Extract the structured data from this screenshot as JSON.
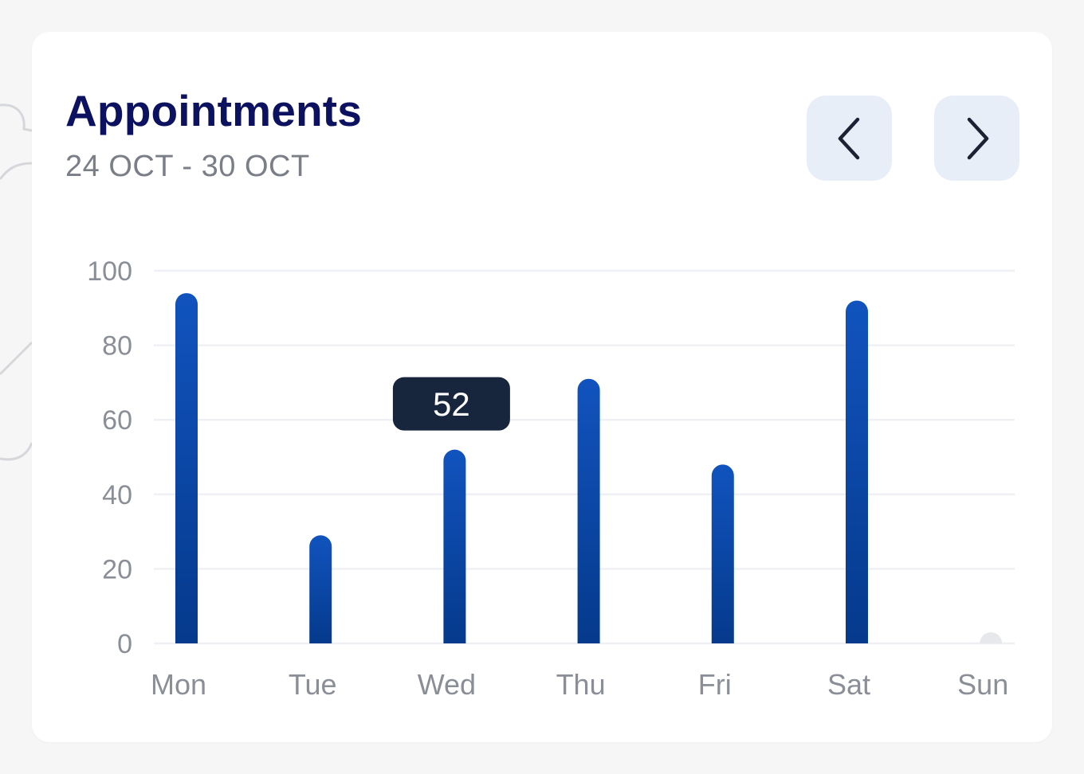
{
  "header": {
    "title": "Appointments",
    "date_range": "24 OCT - 30 OCT"
  },
  "nav": {
    "prev_icon": "chevron-left-icon",
    "next_icon": "chevron-right-icon"
  },
  "colors": {
    "title": "#0c1160",
    "bar_top": "#1153be",
    "bar_bottom": "#053a8c",
    "tooltip_bg": "#17253d",
    "empty_bar": "#e6e8ec"
  },
  "tooltip": {
    "category": "Wed",
    "value": "52"
  },
  "chart_data": {
    "type": "bar",
    "categories": [
      "Mon",
      "Tue",
      "Wed",
      "Thu",
      "Fri",
      "Sat",
      "Sun"
    ],
    "values": [
      94,
      29,
      52,
      71,
      48,
      92,
      0
    ],
    "ylim": [
      0,
      100
    ],
    "yticks": [
      0,
      20,
      40,
      60,
      80,
      100
    ],
    "grid": true,
    "title": "",
    "xlabel": "",
    "ylabel": ""
  }
}
